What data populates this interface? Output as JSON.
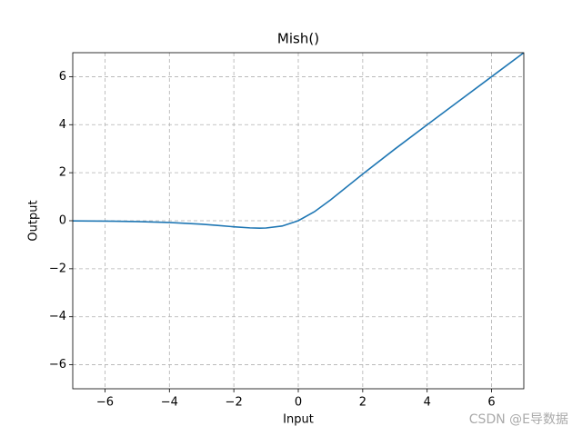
{
  "chart_data": {
    "type": "line",
    "title": "Mish()",
    "x_label": "Input",
    "y_label": "Output",
    "x": [
      -7,
      -6,
      -5,
      -4,
      -3,
      -2.5,
      -2,
      -1.5,
      -1.2,
      -1,
      -0.5,
      0,
      0.5,
      1,
      1.5,
      2,
      3,
      4,
      5,
      6,
      7
    ],
    "series": [
      {
        "name": "Mish",
        "color": "#1f77b4",
        "values": [
          -0.006,
          -0.015,
          -0.034,
          -0.073,
          -0.146,
          -0.197,
          -0.253,
          -0.298,
          -0.309,
          -0.303,
          -0.221,
          0,
          0.375,
          0.865,
          1.403,
          1.944,
          2.987,
          3.997,
          5,
          6,
          7
        ]
      }
    ],
    "xlim": [
      -7,
      7
    ],
    "ylim": [
      -7,
      7
    ],
    "xticks": [
      {
        "value": -6,
        "label": "−6"
      },
      {
        "value": -4,
        "label": "−4"
      },
      {
        "value": -2,
        "label": "−2"
      },
      0,
      2,
      4,
      6
    ],
    "yticks": [
      {
        "value": -6,
        "label": "−6"
      },
      {
        "value": -4,
        "label": "−4"
      },
      {
        "value": -2,
        "label": "−2"
      },
      0,
      2,
      4,
      6
    ],
    "grid": true,
    "watermark": "CSDN @E导数据"
  }
}
